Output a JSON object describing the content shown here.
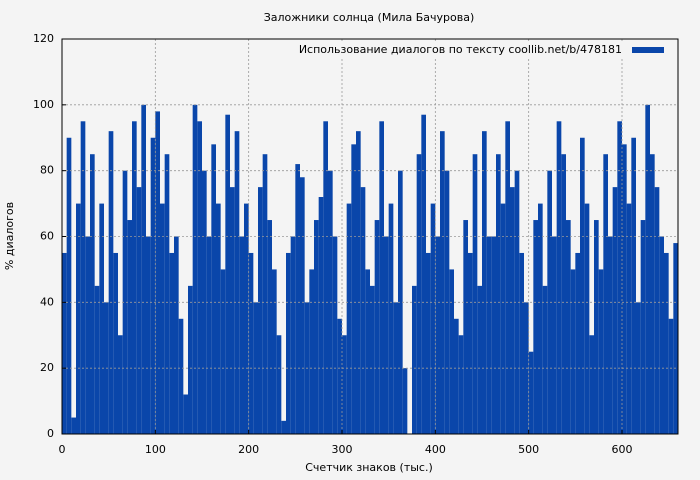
{
  "chart_data": {
    "type": "histogram",
    "title": "Заложники солнца (Мила Бачурова)",
    "x_label": "Счетчик знаков (тыс.)",
    "y_label": "% диалогов",
    "series": [
      {
        "name": "Использование диалогов по тексту  coollib.net/b/478181",
        "color": "#0a46aa",
        "values": [
          55,
          90,
          5,
          70,
          95,
          60,
          85,
          45,
          70,
          40,
          92,
          55,
          30,
          80,
          65,
          95,
          75,
          100,
          60,
          90,
          98,
          70,
          85,
          55,
          60,
          35,
          12,
          45,
          100,
          95,
          80,
          60,
          88,
          70,
          50,
          97,
          75,
          92,
          60,
          70,
          55,
          40,
          75,
          85,
          65,
          50,
          30,
          4,
          55,
          60,
          82,
          78,
          40,
          50,
          65,
          72,
          95,
          80,
          60,
          35,
          30,
          70,
          88,
          92,
          75,
          50,
          45,
          65,
          95,
          60,
          70,
          40,
          80,
          20,
          0,
          45,
          85,
          97,
          55,
          70,
          60,
          92,
          80,
          50,
          35,
          30,
          65,
          55,
          85,
          45,
          92,
          60,
          60,
          85,
          70,
          95,
          75,
          80,
          55,
          40,
          25,
          65,
          70,
          45,
          80,
          60,
          95,
          85,
          65,
          50,
          55,
          90,
          70,
          30,
          65,
          50,
          85,
          60,
          75,
          95,
          88,
          70,
          90,
          40,
          65,
          100,
          85,
          75,
          60,
          55,
          35,
          58
        ]
      }
    ],
    "bins": [
      0,
      5,
      10,
      15,
      20,
      25,
      30,
      35,
      40,
      45,
      50,
      55,
      60,
      65,
      70,
      75,
      80,
      85,
      90,
      95,
      100,
      105,
      110,
      115,
      120,
      125,
      130,
      135,
      140,
      145,
      150,
      155,
      160,
      165,
      170,
      175,
      180,
      185,
      190,
      195,
      200,
      205,
      210,
      215,
      220,
      225,
      230,
      235,
      240,
      245,
      250,
      255,
      260,
      265,
      270,
      275,
      280,
      285,
      290,
      295,
      300,
      305,
      310,
      315,
      320,
      325,
      330,
      335,
      340,
      345,
      350,
      355,
      360,
      365,
      370,
      375,
      380,
      385,
      390,
      395,
      400,
      405,
      410,
      415,
      420,
      425,
      430,
      435,
      440,
      445,
      450,
      455,
      460,
      465,
      470,
      475,
      480,
      485,
      490,
      495,
      500,
      505,
      510,
      515,
      520,
      525,
      530,
      535,
      540,
      545,
      550,
      555,
      560,
      565,
      570,
      575,
      580,
      585,
      590,
      595,
      600,
      605,
      610,
      615,
      620,
      625,
      630,
      635,
      640,
      645,
      650,
      655,
      660
    ],
    "xlim": [
      0,
      660
    ],
    "ylim": [
      0,
      120
    ],
    "xticks": [
      0,
      100,
      200,
      300,
      400,
      500,
      600
    ],
    "yticks": [
      0,
      20,
      40,
      60,
      80,
      100,
      120
    ],
    "grid": true,
    "legend": "top-right"
  }
}
